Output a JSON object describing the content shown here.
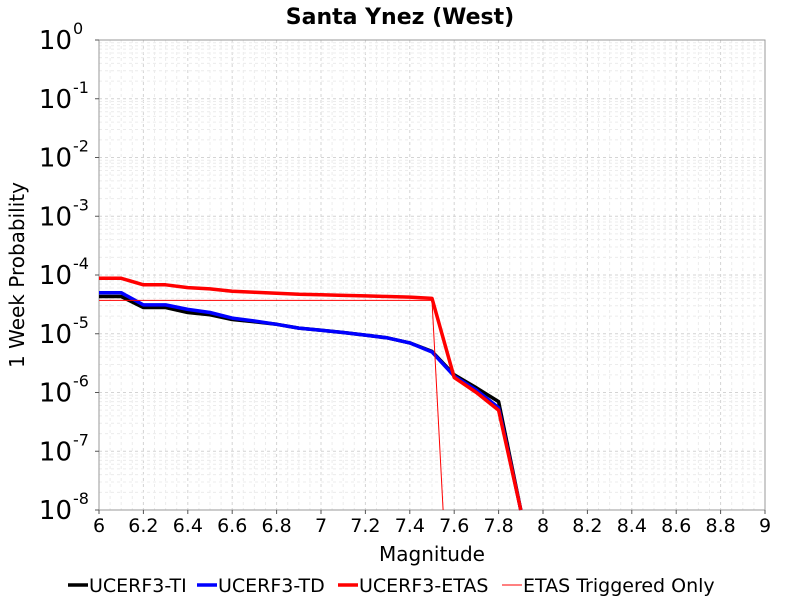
{
  "chart_data": {
    "type": "line",
    "title": "Santa Ynez (West)",
    "xlabel": "Magnitude",
    "ylabel": "1 Week Probability",
    "xlim": [
      6,
      9
    ],
    "ylim": [
      1e-08,
      1
    ],
    "yscale": "log",
    "grid": true,
    "legend_position": "bottom",
    "x_ticks": [
      "6",
      "6.2",
      "6.4",
      "6.6",
      "6.8",
      "7",
      "7.2",
      "7.4",
      "7.6",
      "7.8",
      "8",
      "8.2",
      "8.4",
      "8.6",
      "8.8",
      "9"
    ],
    "y_ticks": [
      {
        "base": "10",
        "exp": "0",
        "value": 1
      },
      {
        "base": "10",
        "exp": "-1",
        "value": 0.1
      },
      {
        "base": "10",
        "exp": "-2",
        "value": 0.01
      },
      {
        "base": "10",
        "exp": "-3",
        "value": 0.001
      },
      {
        "base": "10",
        "exp": "-4",
        "value": 0.0001
      },
      {
        "base": "10",
        "exp": "-5",
        "value": 1e-05
      },
      {
        "base": "10",
        "exp": "-6",
        "value": 1e-06
      },
      {
        "base": "10",
        "exp": "-7",
        "value": 1e-07
      },
      {
        "base": "10",
        "exp": "-8",
        "value": 1e-08
      }
    ],
    "series": [
      {
        "name": "UCERF3-TI",
        "color": "#000000",
        "width": "thick",
        "x": [
          6.0,
          6.1,
          6.2,
          6.3,
          6.4,
          6.5,
          6.6,
          6.7,
          6.8,
          6.9,
          7.0,
          7.1,
          7.2,
          7.3,
          7.4,
          7.5,
          7.6,
          7.7,
          7.8,
          7.9
        ],
        "y": [
          4.3e-05,
          4.3e-05,
          2.8e-05,
          2.8e-05,
          2.3e-05,
          2.1e-05,
          1.75e-05,
          1.6e-05,
          1.45e-05,
          1.25e-05,
          1.15e-05,
          1.05e-05,
          9.5e-06,
          8.5e-06,
          7e-06,
          5e-06,
          2e-06,
          1.2e-06,
          7e-07,
          1e-08
        ]
      },
      {
        "name": "UCERF3-TD",
        "color": "#0000ff",
        "width": "thick",
        "x": [
          6.0,
          6.1,
          6.2,
          6.3,
          6.4,
          6.5,
          6.6,
          6.7,
          6.8,
          6.9,
          7.0,
          7.1,
          7.2,
          7.3,
          7.4,
          7.5,
          7.6,
          7.7,
          7.8,
          7.9
        ],
        "y": [
          5e-05,
          5e-05,
          3.1e-05,
          3.1e-05,
          2.6e-05,
          2.3e-05,
          1.85e-05,
          1.65e-05,
          1.45e-05,
          1.25e-05,
          1.15e-05,
          1.05e-05,
          9.5e-06,
          8.5e-06,
          7e-06,
          4.9e-06,
          1.9e-06,
          1.1e-06,
          5.5e-07,
          1e-08
        ]
      },
      {
        "name": "UCERF3-ETAS",
        "color": "#ff0000",
        "width": "thick",
        "x": [
          6.0,
          6.1,
          6.2,
          6.3,
          6.4,
          6.5,
          6.6,
          6.7,
          6.8,
          6.9,
          7.0,
          7.1,
          7.2,
          7.3,
          7.4,
          7.5,
          7.6,
          7.7,
          7.8,
          7.9
        ],
        "y": [
          8.8e-05,
          8.8e-05,
          6.8e-05,
          6.8e-05,
          6.1e-05,
          5.8e-05,
          5.3e-05,
          5.1e-05,
          4.9e-05,
          4.7e-05,
          4.6e-05,
          4.5e-05,
          4.4e-05,
          4.3e-05,
          4.2e-05,
          4e-05,
          1.8e-06,
          1e-06,
          5e-07,
          1e-08
        ]
      },
      {
        "name": "ETAS Triggered Only",
        "color": "#ff0000",
        "width": "thin",
        "x": [
          6.0,
          6.1,
          6.2,
          7.5,
          7.55
        ],
        "y": [
          3.7e-05,
          3.7e-05,
          3.7e-05,
          3.7e-05,
          1e-08
        ]
      }
    ]
  }
}
